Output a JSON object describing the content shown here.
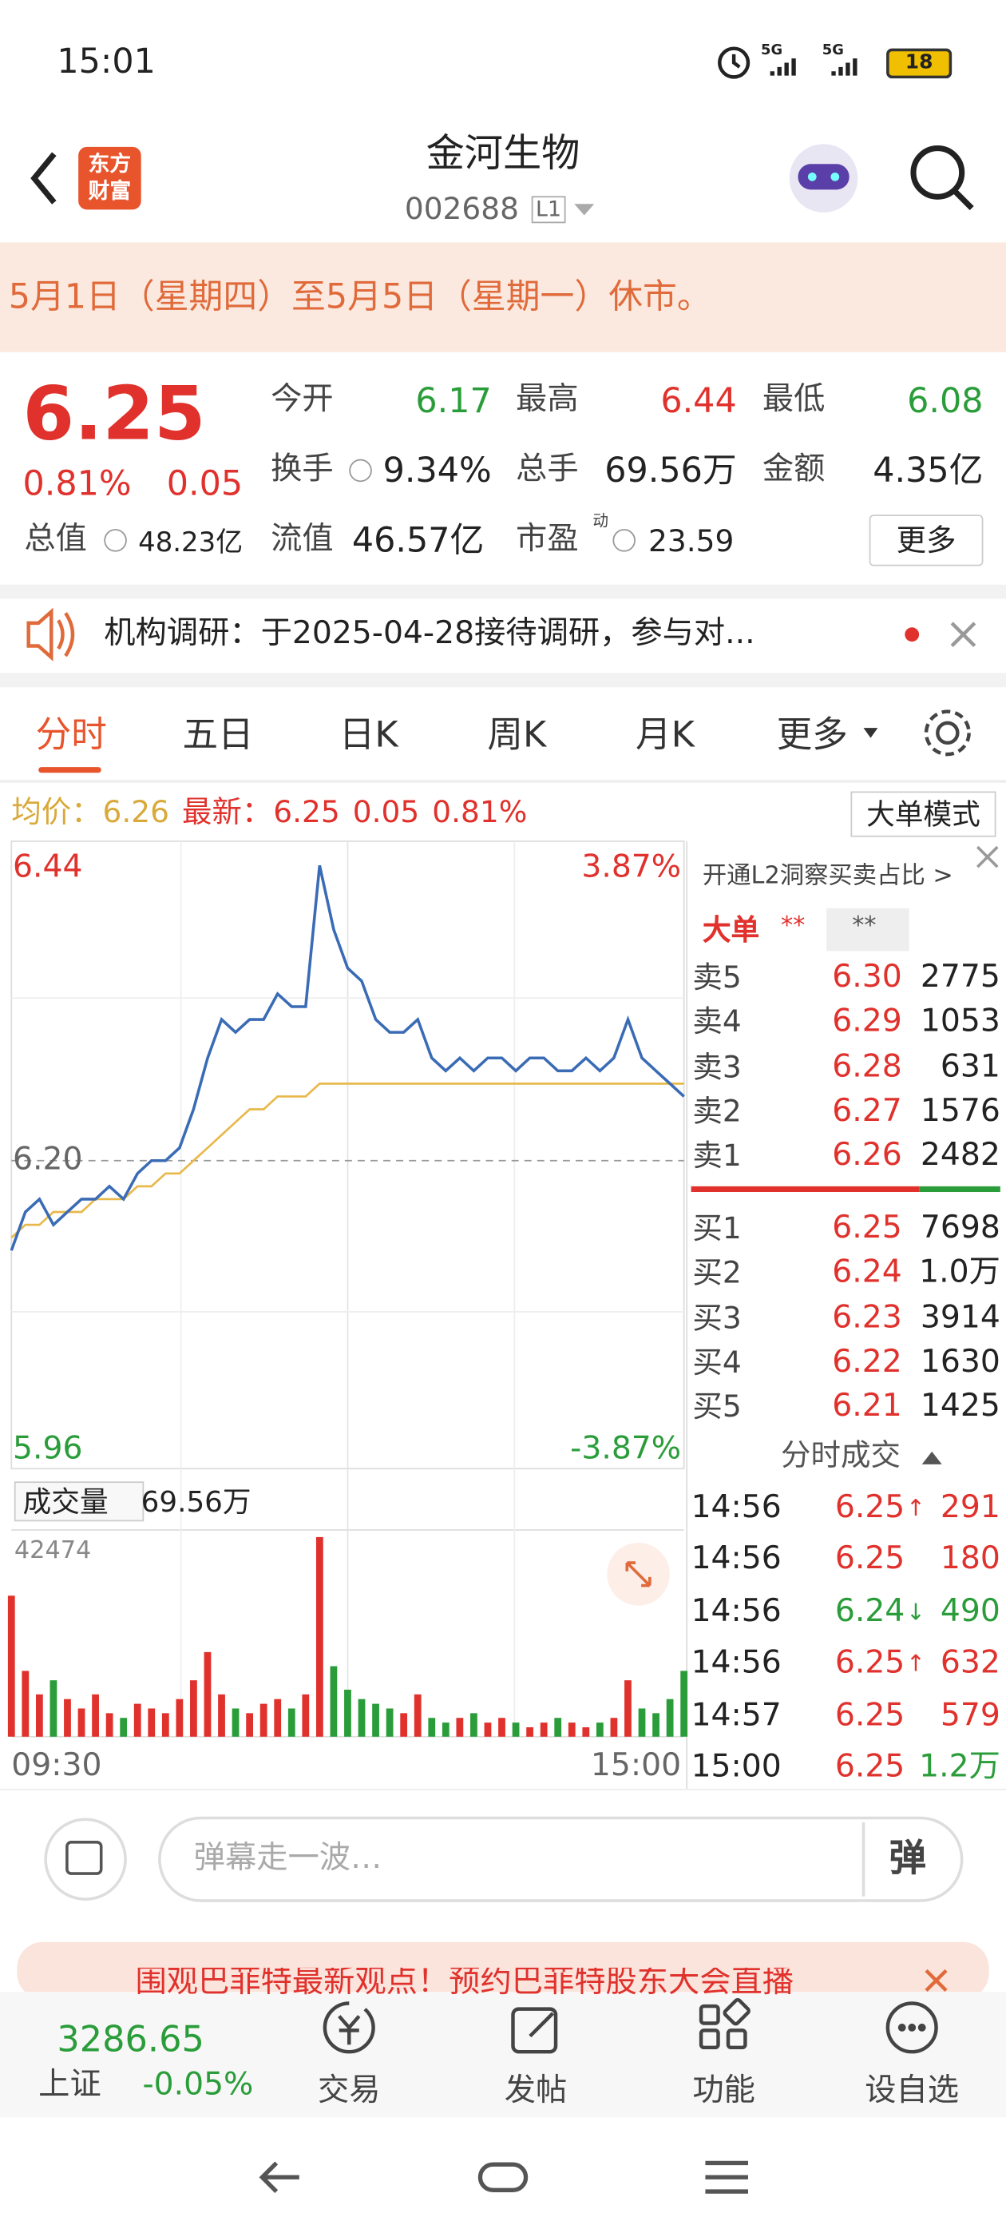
{
  "status_bar": {
    "time": "15:01",
    "signal1": "5G",
    "signal2": "5G",
    "battery": "18"
  },
  "header": {
    "logo": "东方财富",
    "title": "金河生物",
    "code": "002688",
    "level": "L1"
  },
  "notice": {
    "text": "5月1日（星期四）至5月5日（星期一）休市。"
  },
  "quote": {
    "price": "6.25",
    "change_pct": "0.81%",
    "change": "0.05",
    "stats": [
      {
        "label": "今开",
        "value": "6.17",
        "color": "green"
      },
      {
        "label": "最高",
        "value": "6.44",
        "color": "red"
      },
      {
        "label": "最低",
        "value": "6.08",
        "color": "green"
      },
      {
        "label": "换手",
        "value": "9.34%",
        "color": "black",
        "info": true
      },
      {
        "label": "总手",
        "value": "69.56万",
        "color": "black"
      },
      {
        "label": "金额",
        "value": "4.35亿",
        "color": "black"
      }
    ],
    "total_cap": {
      "label": "总值",
      "value": "48.23亿"
    },
    "float_cap": {
      "label": "流值",
      "value": "46.57亿"
    },
    "pe": {
      "label": "市盈",
      "sup": "动",
      "value": "23.59"
    },
    "more": "更多"
  },
  "news": {
    "text": "机构调研：于2025-04-28接待调研，参与对..."
  },
  "tabs": [
    "分时",
    "五日",
    "日K",
    "周K",
    "月K",
    "更多"
  ],
  "info_line": {
    "avg_label": "均价：",
    "avg": "6.26",
    "last_label": "最新：",
    "last": "6.25",
    "change": "0.05",
    "change_pct": "0.81%",
    "mode_button": "大单模式"
  },
  "intraday": {
    "type": "line",
    "ylim": [
      5.96,
      6.44
    ],
    "yticks": [
      6.44,
      {
        "value": 6.2,
        "label": "6.20"
      },
      5.96
    ],
    "pct_top": "3.87%",
    "pct_bottom": "-3.87%",
    "x_start": "09:30",
    "x_end": "15:00",
    "prices": [
      6.13,
      6.16,
      6.17,
      6.15,
      6.16,
      6.17,
      6.17,
      6.18,
      6.17,
      6.19,
      6.2,
      6.2,
      6.21,
      6.24,
      6.28,
      6.31,
      6.3,
      6.31,
      6.31,
      6.33,
      6.32,
      6.32,
      6.43,
      6.38,
      6.35,
      6.34,
      6.31,
      6.3,
      6.3,
      6.31,
      6.28,
      6.27,
      6.28,
      6.27,
      6.28,
      6.28,
      6.27,
      6.28,
      6.28,
      6.27,
      6.27,
      6.28,
      6.27,
      6.28,
      6.31,
      6.28,
      6.27,
      6.26,
      6.25
    ],
    "avg": [
      6.14,
      6.15,
      6.15,
      6.16,
      6.16,
      6.16,
      6.17,
      6.17,
      6.17,
      6.18,
      6.18,
      6.19,
      6.19,
      6.2,
      6.21,
      6.22,
      6.23,
      6.24,
      6.24,
      6.25,
      6.25,
      6.25,
      6.26,
      6.26,
      6.26,
      6.26,
      6.26,
      6.26,
      6.26,
      6.26,
      6.26,
      6.26,
      6.26,
      6.26,
      6.26,
      6.26,
      6.26,
      6.26,
      6.26,
      6.26,
      6.26,
      6.26,
      6.26,
      6.26,
      6.26,
      6.26,
      6.26,
      6.26,
      6.26
    ],
    "price_color": "#3a6bb5",
    "avg_color": "#e8b84a",
    "volume_label": "成交量",
    "volume_total": "69.56万",
    "volume_ylim": [
      0,
      42474
    ],
    "volume_ticks": [
      42474
    ],
    "volumes": [
      30000,
      14000,
      9000,
      12000,
      8000,
      6000,
      9000,
      5000,
      4000,
      7000,
      6000,
      5000,
      8000,
      12000,
      18000,
      9000,
      6000,
      5000,
      7000,
      8000,
      6000,
      9000,
      42474,
      15000,
      10000,
      8000,
      7000,
      6000,
      5000,
      9000,
      4000,
      3000,
      4000,
      5000,
      3000,
      4000,
      3000,
      2000,
      3000,
      4000,
      3000,
      2000,
      3000,
      4000,
      12000,
      6000,
      5000,
      8000,
      14000
    ]
  },
  "order_book": {
    "promo": "开通L2洞察买卖占比 >",
    "big_label": "大单",
    "big_a": "**",
    "big_b": "**",
    "asks": [
      {
        "label": "卖5",
        "price": "6.30",
        "volume": "2775"
      },
      {
        "label": "卖4",
        "price": "6.29",
        "volume": "1053"
      },
      {
        "label": "卖3",
        "price": "6.28",
        "volume": "631"
      },
      {
        "label": "卖2",
        "price": "6.27",
        "volume": "1576"
      },
      {
        "label": "卖1",
        "price": "6.26",
        "volume": "2482"
      }
    ],
    "bids": [
      {
        "label": "买1",
        "price": "6.25",
        "volume": "7698"
      },
      {
        "label": "买2",
        "price": "6.24",
        "volume": "1.0万"
      },
      {
        "label": "买3",
        "price": "6.23",
        "volume": "3914"
      },
      {
        "label": "买4",
        "price": "6.22",
        "volume": "1630"
      },
      {
        "label": "买5",
        "price": "6.21",
        "volume": "1425"
      }
    ]
  },
  "trades": {
    "title": "分时成交",
    "rows": [
      {
        "time": "14:56",
        "price": "6.25",
        "arrow": "↑",
        "volume": "291",
        "price_color": "red",
        "volume_color": "red"
      },
      {
        "time": "14:56",
        "price": "6.25",
        "arrow": "",
        "volume": "180",
        "price_color": "red",
        "volume_color": "red"
      },
      {
        "time": "14:56",
        "price": "6.24",
        "arrow": "↓",
        "volume": "490",
        "price_color": "green",
        "volume_color": "green"
      },
      {
        "time": "14:56",
        "price": "6.25",
        "arrow": "↑",
        "volume": "632",
        "price_color": "red",
        "volume_color": "red"
      },
      {
        "time": "14:57",
        "price": "6.25",
        "arrow": "",
        "volume": "579",
        "price_color": "red",
        "volume_color": "red"
      },
      {
        "time": "15:00",
        "price": "6.25",
        "arrow": "",
        "volume": "1.2万",
        "price_color": "red",
        "volume_color": "green"
      }
    ]
  },
  "comment": {
    "placeholder": "弹幕走一波…",
    "button": "弹"
  },
  "ad": {
    "text": "围观巴菲特最新观点！预约巴菲特股东大会直播"
  },
  "bottom_nav": {
    "index_value": "3286.65",
    "index_name": "上证",
    "index_change": "-0.05%",
    "items": [
      "交易",
      "发帖",
      "功能",
      "设自选"
    ]
  }
}
